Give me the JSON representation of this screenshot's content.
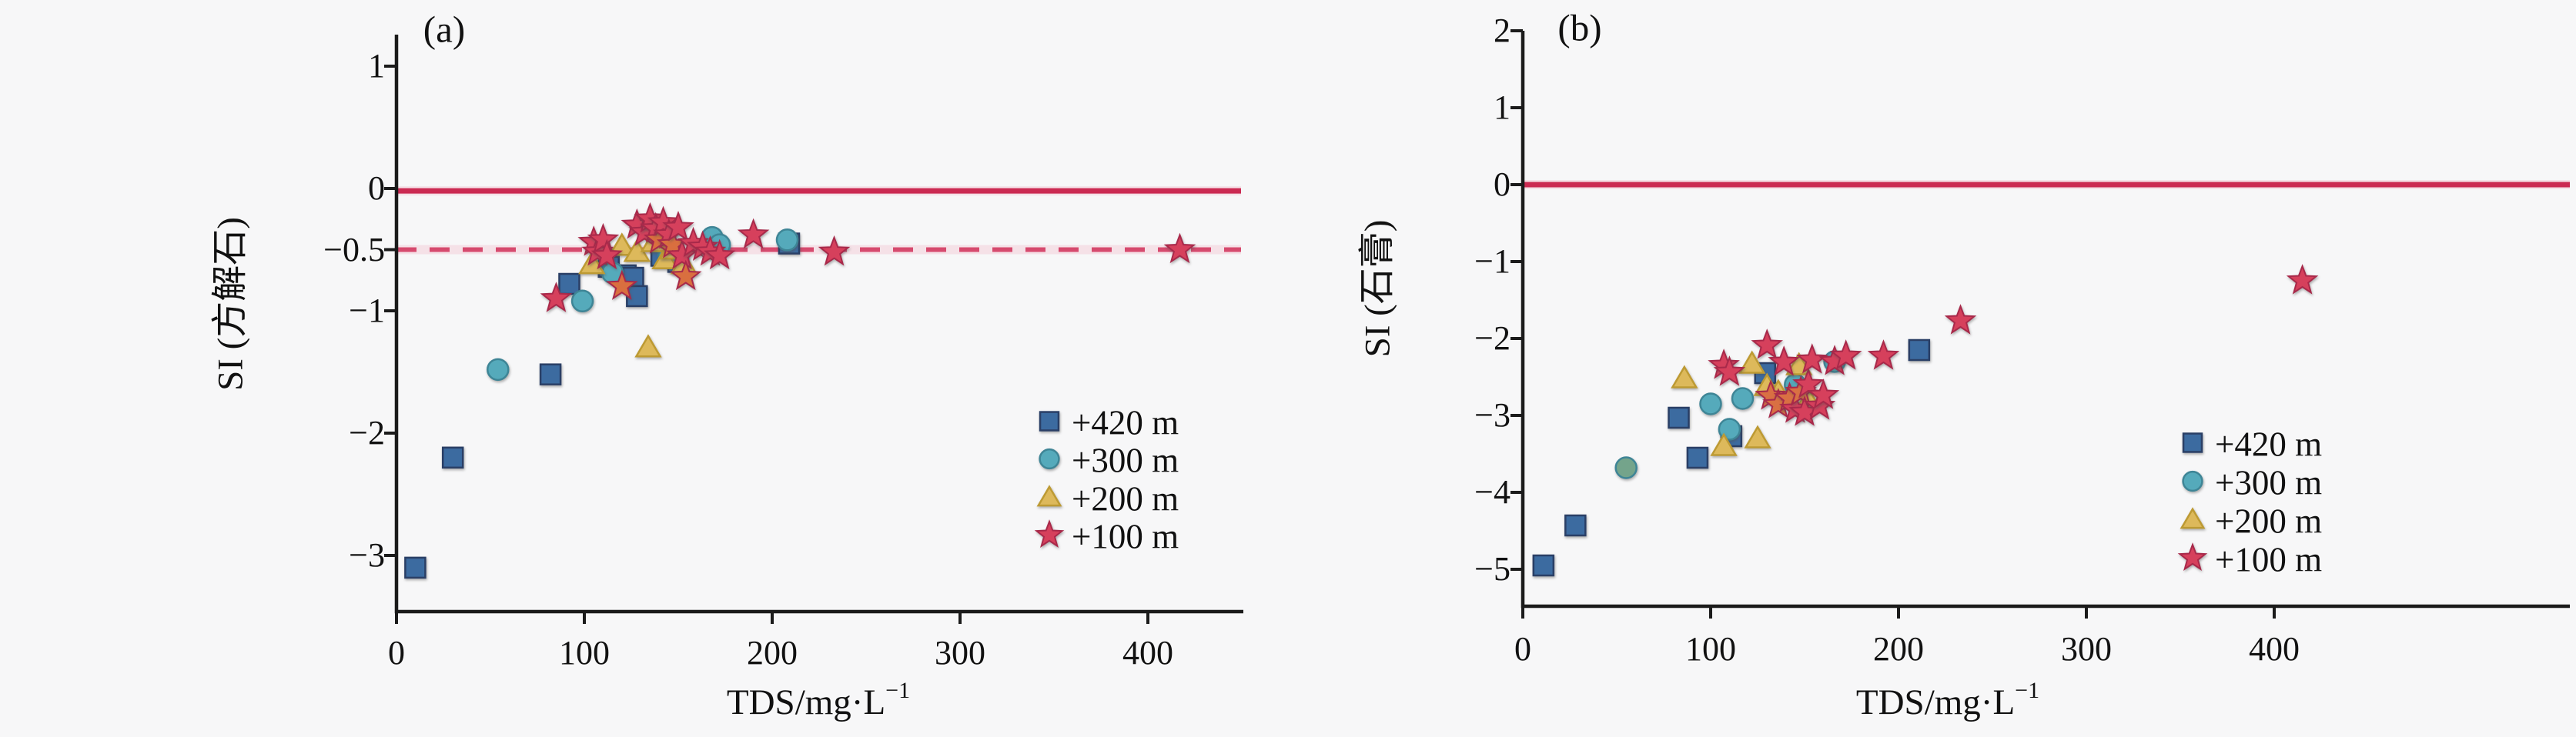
{
  "figure": {
    "background": "#f7f7f8",
    "text_color": "#111111",
    "axis_color": "#1b1b1b",
    "accent_line_color": "#cb2a52",
    "panels": [
      {
        "title": "(a)",
        "ylabel": "SI (方解石)",
        "xlabel": "TDS/mg·L⁻¹",
        "xlabel_main": "TDS/mg·L",
        "xlabel_sup": "−1",
        "legend": [
          {
            "label": "+420 m",
            "marker": "square"
          },
          {
            "label": "+300 m",
            "marker": "circle"
          },
          {
            "label": "+200 m",
            "marker": "triangle"
          },
          {
            "label": "+100 m",
            "marker": "star"
          }
        ]
      },
      {
        "title": "(b)",
        "ylabel": "SI (石膏)",
        "xlabel": "TDS/mg·L⁻¹",
        "xlabel_main": "TDS/mg·L",
        "xlabel_sup": "−1",
        "legend": [
          {
            "label": "+420 m",
            "marker": "square"
          },
          {
            "label": "+300 m",
            "marker": "circle"
          },
          {
            "label": "+200 m",
            "marker": "triangle"
          },
          {
            "label": "+100 m",
            "marker": "star"
          }
        ]
      }
    ]
  },
  "chart_data": [
    {
      "type": "scatter",
      "title": "(a)",
      "xlabel": "TDS/mg·L⁻¹",
      "ylabel": "SI (方解石)",
      "xlim": [
        0,
        450
      ],
      "ylim": [
        -3.45,
        1.26
      ],
      "x_ticks": [
        0,
        100,
        200,
        300,
        400
      ],
      "x_tick_labels": [
        "0",
        "100",
        "200",
        "300",
        "400"
      ],
      "y_ticks": [
        1,
        0,
        -0.5,
        -1,
        -2,
        -3
      ],
      "y_tick_labels": [
        "1",
        "0",
        "−0.5",
        "−1",
        "−2",
        "−3"
      ],
      "grid": false,
      "legend_position": "lower right",
      "ref_lines": [
        {
          "y": -0.02,
          "style": "solid",
          "color": "#cb2a52"
        },
        {
          "y": -0.5,
          "style": "dashed",
          "color": "#d64a6e"
        }
      ],
      "series": [
        {
          "name": "+420 m",
          "marker": "square",
          "color": "#3c6ba0",
          "edge": "#2a3f66",
          "points": [
            [
              10,
              -3.1
            ],
            [
              30,
              -2.2
            ],
            [
              82,
              -1.52
            ],
            [
              92,
              -0.78
            ],
            [
              113,
              -0.64
            ],
            [
              122,
              -0.71
            ],
            [
              126,
              -0.73
            ],
            [
              128,
              -0.88
            ],
            [
              141,
              -0.55
            ],
            [
              150,
              -0.6
            ],
            [
              209,
              -0.45
            ]
          ]
        },
        {
          "name": "+300 m",
          "marker": "circle",
          "color": "#55aabb",
          "edge": "#3e8596",
          "points": [
            [
              54,
              -1.48
            ],
            [
              99,
              -0.92
            ],
            [
              115,
              -0.69
            ],
            [
              145,
              -0.54
            ],
            [
              168,
              -0.4
            ],
            [
              172,
              -0.46
            ],
            [
              208,
              -0.42
            ]
          ]
        },
        {
          "name": "+200 m",
          "marker": "triangle",
          "color": "#ddb95b",
          "edge": "#bd9a33",
          "points": [
            [
              104,
              -0.62
            ],
            [
              120,
              -0.47
            ],
            [
              128,
              -0.52
            ],
            [
              134,
              -1.3
            ],
            [
              137,
              -0.44
            ],
            [
              143,
              -0.58
            ],
            [
              147,
              -0.5
            ],
            [
              153,
              -0.62
            ]
          ]
        },
        {
          "name": "+100 m",
          "marker": "star",
          "color": "#d6405c",
          "edge": "#a8294a",
          "points": [
            [
              85,
              -0.9
            ],
            [
              105,
              -0.44
            ],
            [
              107,
              -0.52
            ],
            [
              110,
              -0.42
            ],
            [
              112,
              -0.55
            ],
            [
              120,
              -0.8,
              "#d96f3f"
            ],
            [
              128,
              -0.3
            ],
            [
              132,
              -0.36
            ],
            [
              135,
              -0.25
            ],
            [
              138,
              -0.33
            ],
            [
              140,
              -0.42,
              "#d96f3f"
            ],
            [
              142,
              -0.28
            ],
            [
              145,
              -0.38
            ],
            [
              147,
              -0.46,
              "#d96f3f"
            ],
            [
              150,
              -0.32
            ],
            [
              152,
              -0.55
            ],
            [
              154,
              -0.72,
              "#d96f3f"
            ],
            [
              158,
              -0.45
            ],
            [
              163,
              -0.48
            ],
            [
              167,
              -0.52
            ],
            [
              172,
              -0.55
            ],
            [
              190,
              -0.38
            ],
            [
              233,
              -0.52
            ],
            [
              417,
              -0.5
            ]
          ]
        }
      ]
    },
    {
      "type": "scatter",
      "title": "(b)",
      "xlabel": "TDS/mg·L⁻¹",
      "ylabel": "SI (石膏)",
      "xlim": [
        0,
        557
      ],
      "ylim": [
        -5.48,
        2
      ],
      "x_ticks": [
        0,
        100,
        200,
        300,
        400
      ],
      "x_tick_labels": [
        "0",
        "100",
        "200",
        "300",
        "400"
      ],
      "y_ticks": [
        2,
        1,
        0,
        -1,
        -2,
        -3,
        -4,
        -5
      ],
      "y_tick_labels": [
        "2",
        "1",
        "0",
        "−1",
        "−2",
        "−3",
        "−4",
        "−5"
      ],
      "grid": false,
      "legend_position": "lower right",
      "ref_lines": [
        {
          "y": 0,
          "style": "solid",
          "color": "#cb2a52"
        }
      ],
      "series": [
        {
          "name": "+420 m",
          "marker": "square",
          "color": "#3c6ba0",
          "edge": "#2a3f66",
          "points": [
            [
              11,
              -4.95
            ],
            [
              28,
              -4.43
            ],
            [
              83,
              -3.03
            ],
            [
              93,
              -3.55
            ],
            [
              111,
              -3.27
            ],
            [
              129,
              -2.45
            ],
            [
              211,
              -2.15
            ]
          ]
        },
        {
          "name": "+300 m",
          "marker": "circle",
          "color": "#55aabb",
          "edge": "#3e8596",
          "points": [
            [
              55,
              -3.68,
              "#74a48b"
            ],
            [
              100,
              -2.85
            ],
            [
              110,
              -3.18
            ],
            [
              117,
              -2.78
            ],
            [
              145,
              -2.6
            ],
            [
              166,
              -2.3
            ]
          ]
        },
        {
          "name": "+200 m",
          "marker": "triangle",
          "color": "#ddb95b",
          "edge": "#bd9a33",
          "points": [
            [
              86,
              -2.52
            ],
            [
              107,
              -3.4
            ],
            [
              122,
              -2.33
            ],
            [
              125,
              -3.3
            ],
            [
              130,
              -2.62
            ],
            [
              136,
              -2.7
            ],
            [
              147,
              -2.35
            ],
            [
              152,
              -2.8
            ]
          ]
        },
        {
          "name": "+100 m",
          "marker": "star",
          "color": "#d6405c",
          "edge": "#a8294a",
          "points": [
            [
              107,
              -2.35
            ],
            [
              110,
              -2.44
            ],
            [
              130,
              -2.09
            ],
            [
              132,
              -2.75,
              "#d97043"
            ],
            [
              136,
              -2.86,
              "#d97043"
            ],
            [
              139,
              -2.31
            ],
            [
              142,
              -2.78,
              "#d97043"
            ],
            [
              145,
              -2.92
            ],
            [
              148,
              -2.7,
              "#d97043"
            ],
            [
              150,
              -2.96
            ],
            [
              152,
              -2.6
            ],
            [
              154,
              -2.28
            ],
            [
              158,
              -2.88
            ],
            [
              160,
              -2.74
            ],
            [
              166,
              -2.3
            ],
            [
              172,
              -2.23
            ],
            [
              192,
              -2.23
            ],
            [
              233,
              -1.77
            ],
            [
              415,
              -1.25
            ]
          ]
        }
      ]
    }
  ]
}
